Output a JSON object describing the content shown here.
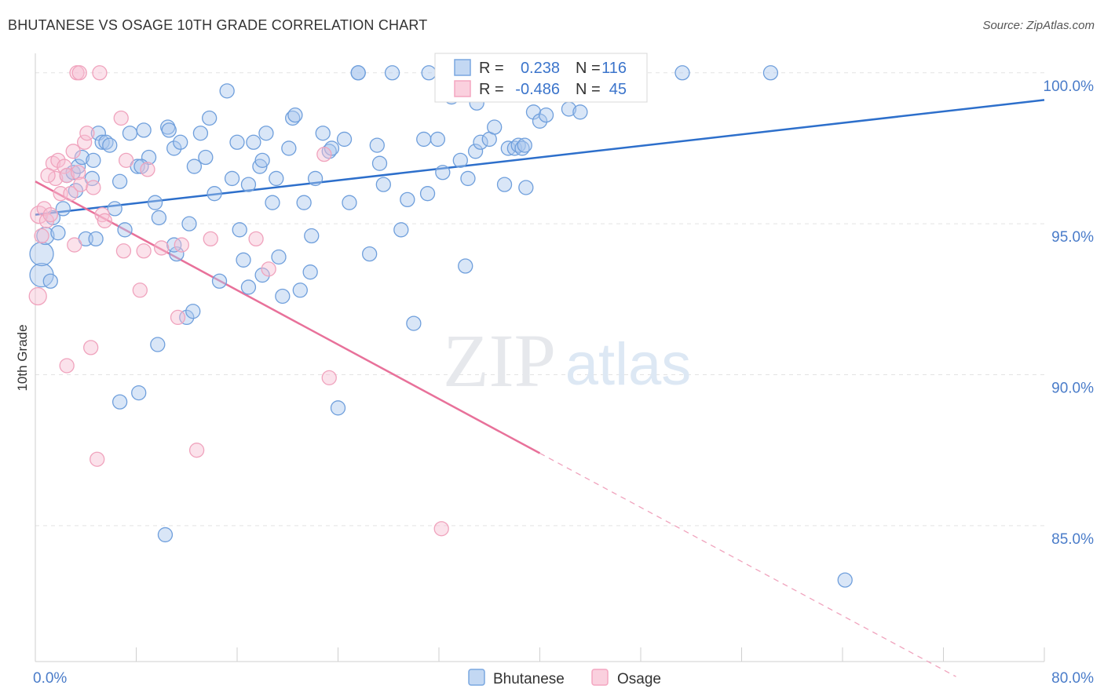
{
  "header": {
    "title": "BHUTANESE VS OSAGE 10TH GRADE CORRELATION CHART",
    "source": "Source: ZipAtlas.com"
  },
  "watermark": {
    "zip": "ZIP",
    "atlas": "atlas"
  },
  "chart_data": {
    "type": "scatter",
    "title": "BHUTANESE VS OSAGE 10TH GRADE CORRELATION CHART",
    "ylabel": "10th Grade",
    "xlabel": "",
    "xlim": [
      0,
      80
    ],
    "ylim": [
      80.5,
      100.8
    ],
    "x_tick_labels": [
      {
        "value": 0,
        "label": "0.0%"
      },
      {
        "value": 80,
        "label": "80.0%"
      }
    ],
    "y_tick_labels": [
      {
        "value": 100,
        "label": "100.0%"
      },
      {
        "value": 95,
        "label": "95.0%"
      },
      {
        "value": 90,
        "label": "90.0%"
      },
      {
        "value": 85,
        "label": "85.0%"
      }
    ],
    "grid": true,
    "legend": [
      {
        "name": "Bhutanese",
        "r_label": "R =",
        "r_value": "0.238",
        "n_label": "N =",
        "n_value": "116"
      },
      {
        "name": "Osage",
        "r_label": "R =",
        "r_value": "-0.486",
        "n_label": "N =",
        "n_value": "45"
      }
    ],
    "legend_placement": "top-center",
    "series": [
      {
        "name": "Bhutanese",
        "color": "#7aa7e0",
        "trend": {
          "x": [
            0,
            80
          ],
          "y": [
            95.3,
            99.1
          ]
        },
        "points": [
          [
            0.5,
            93.3
          ],
          [
            0.5,
            94.0
          ],
          [
            0.8,
            94.6
          ],
          [
            1.2,
            93.1
          ],
          [
            1.4,
            95.2
          ],
          [
            1.8,
            94.7
          ],
          [
            2.2,
            95.5
          ],
          [
            2.5,
            96.6
          ],
          [
            3.0,
            96.7
          ],
          [
            3.2,
            96.1
          ],
          [
            3.4,
            96.9
          ],
          [
            3.7,
            97.2
          ],
          [
            4.0,
            94.5
          ],
          [
            4.5,
            96.5
          ],
          [
            4.8,
            94.5
          ],
          [
            5.0,
            98.0
          ],
          [
            5.3,
            97.7
          ],
          [
            5.6,
            97.7
          ],
          [
            5.9,
            97.6
          ],
          [
            6.3,
            95.5
          ],
          [
            6.7,
            96.4
          ],
          [
            7.1,
            94.8
          ],
          [
            7.5,
            98.0
          ],
          [
            8.1,
            96.9
          ],
          [
            8.6,
            98.1
          ],
          [
            8.2,
            89.4
          ],
          [
            6.7,
            89.1
          ],
          [
            9.0,
            97.2
          ],
          [
            9.5,
            95.7
          ],
          [
            9.8,
            95.2
          ],
          [
            10.5,
            98.2
          ],
          [
            10.6,
            98.1
          ],
          [
            11.0,
            97.5
          ],
          [
            11.5,
            97.7
          ],
          [
            11.2,
            94.0
          ],
          [
            12.2,
            95.0
          ],
          [
            12.6,
            96.9
          ],
          [
            13.1,
            98.0
          ],
          [
            13.5,
            97.2
          ],
          [
            13.8,
            98.5
          ],
          [
            14.2,
            96.0
          ],
          [
            14.6,
            93.1
          ],
          [
            15.2,
            99.4
          ],
          [
            15.6,
            96.5
          ],
          [
            16.0,
            97.7
          ],
          [
            16.2,
            94.8
          ],
          [
            16.5,
            93.8
          ],
          [
            16.9,
            96.3
          ],
          [
            17.3,
            97.7
          ],
          [
            17.8,
            96.9
          ],
          [
            18.0,
            97.1
          ],
          [
            18.3,
            98.0
          ],
          [
            18.8,
            95.7
          ],
          [
            19.1,
            96.5
          ],
          [
            19.3,
            93.9
          ],
          [
            19.6,
            92.6
          ],
          [
            20.1,
            97.5
          ],
          [
            20.4,
            98.5
          ],
          [
            20.6,
            98.6
          ],
          [
            21.0,
            92.8
          ],
          [
            21.3,
            95.7
          ],
          [
            21.8,
            93.4
          ],
          [
            22.2,
            96.5
          ],
          [
            22.8,
            98.0
          ],
          [
            23.3,
            97.4
          ],
          [
            23.5,
            97.5
          ],
          [
            24.0,
            88.9
          ],
          [
            24.5,
            97.8
          ],
          [
            24.9,
            95.7
          ],
          [
            25.6,
            100.0
          ],
          [
            25.6,
            100.0
          ],
          [
            27.1,
            97.6
          ],
          [
            27.3,
            97.0
          ],
          [
            27.6,
            96.3
          ],
          [
            28.3,
            100.0
          ],
          [
            29.0,
            94.8
          ],
          [
            29.5,
            95.8
          ],
          [
            30.0,
            91.7
          ],
          [
            30.8,
            97.8
          ],
          [
            31.1,
            96.0
          ],
          [
            31.2,
            100.0
          ],
          [
            31.9,
            97.8
          ],
          [
            32.3,
            96.7
          ],
          [
            33.0,
            99.2
          ],
          [
            33.7,
            97.1
          ],
          [
            34.1,
            93.6
          ],
          [
            34.3,
            96.5
          ],
          [
            34.9,
            97.4
          ],
          [
            35.3,
            97.7
          ],
          [
            36.0,
            97.8
          ],
          [
            36.4,
            98.2
          ],
          [
            37.2,
            96.3
          ],
          [
            37.5,
            97.5
          ],
          [
            38.0,
            97.5
          ],
          [
            38.3,
            97.6
          ],
          [
            38.6,
            97.5
          ],
          [
            38.8,
            97.6
          ],
          [
            38.9,
            96.2
          ],
          [
            39.5,
            98.7
          ],
          [
            40.0,
            98.4
          ],
          [
            40.5,
            98.6
          ],
          [
            42.3,
            98.8
          ],
          [
            43.2,
            98.7
          ],
          [
            43.6,
            99.3
          ],
          [
            44.3,
            100.0
          ],
          [
            51.3,
            100.0
          ],
          [
            58.3,
            100.0
          ],
          [
            64.2,
            83.2
          ],
          [
            21.9,
            94.6
          ],
          [
            12.0,
            91.9
          ],
          [
            10.3,
            84.7
          ],
          [
            9.7,
            91.0
          ],
          [
            8.4,
            96.9
          ],
          [
            4.6,
            97.1
          ],
          [
            26.5,
            94.0
          ],
          [
            16.9,
            92.9
          ],
          [
            11.0,
            94.3
          ],
          [
            35.0,
            99.0
          ],
          [
            18.0,
            93.3
          ],
          [
            12.5,
            92.1
          ]
        ]
      },
      {
        "name": "Osage",
        "color": "#f4a6c0",
        "trend": {
          "x": [
            0,
            40
          ],
          "y": [
            96.4,
            87.4
          ]
        },
        "trend_dashed": {
          "x": [
            40,
            73
          ],
          "y": [
            87.4,
            80.0
          ]
        },
        "points": [
          [
            0.3,
            95.3
          ],
          [
            0.2,
            92.6
          ],
          [
            0.5,
            94.6
          ],
          [
            0.7,
            95.5
          ],
          [
            0.9,
            95.1
          ],
          [
            1.2,
            95.3
          ],
          [
            1.4,
            97.0
          ],
          [
            1.6,
            96.5
          ],
          [
            1.8,
            97.1
          ],
          [
            2.0,
            96.0
          ],
          [
            2.3,
            96.9
          ],
          [
            2.5,
            96.6
          ],
          [
            2.8,
            96.0
          ],
          [
            3.0,
            97.4
          ],
          [
            3.4,
            96.7
          ],
          [
            3.6,
            96.3
          ],
          [
            3.3,
            100.0
          ],
          [
            3.5,
            100.0
          ],
          [
            3.9,
            97.7
          ],
          [
            4.1,
            98.0
          ],
          [
            4.6,
            96.2
          ],
          [
            5.1,
            100.0
          ],
          [
            5.3,
            95.3
          ],
          [
            5.5,
            95.1
          ],
          [
            6.8,
            98.5
          ],
          [
            7.0,
            94.1
          ],
          [
            7.2,
            97.1
          ],
          [
            8.3,
            92.8
          ],
          [
            8.6,
            94.1
          ],
          [
            8.9,
            96.8
          ],
          [
            10.0,
            94.2
          ],
          [
            11.3,
            91.9
          ],
          [
            11.6,
            94.3
          ],
          [
            12.8,
            87.5
          ],
          [
            13.9,
            94.5
          ],
          [
            17.5,
            94.5
          ],
          [
            18.5,
            93.5
          ],
          [
            22.9,
            97.3
          ],
          [
            23.3,
            89.9
          ],
          [
            32.2,
            84.9
          ],
          [
            4.4,
            90.9
          ],
          [
            2.5,
            90.3
          ],
          [
            4.9,
            87.2
          ],
          [
            1.0,
            96.6
          ],
          [
            3.1,
            94.3
          ]
        ]
      }
    ]
  }
}
